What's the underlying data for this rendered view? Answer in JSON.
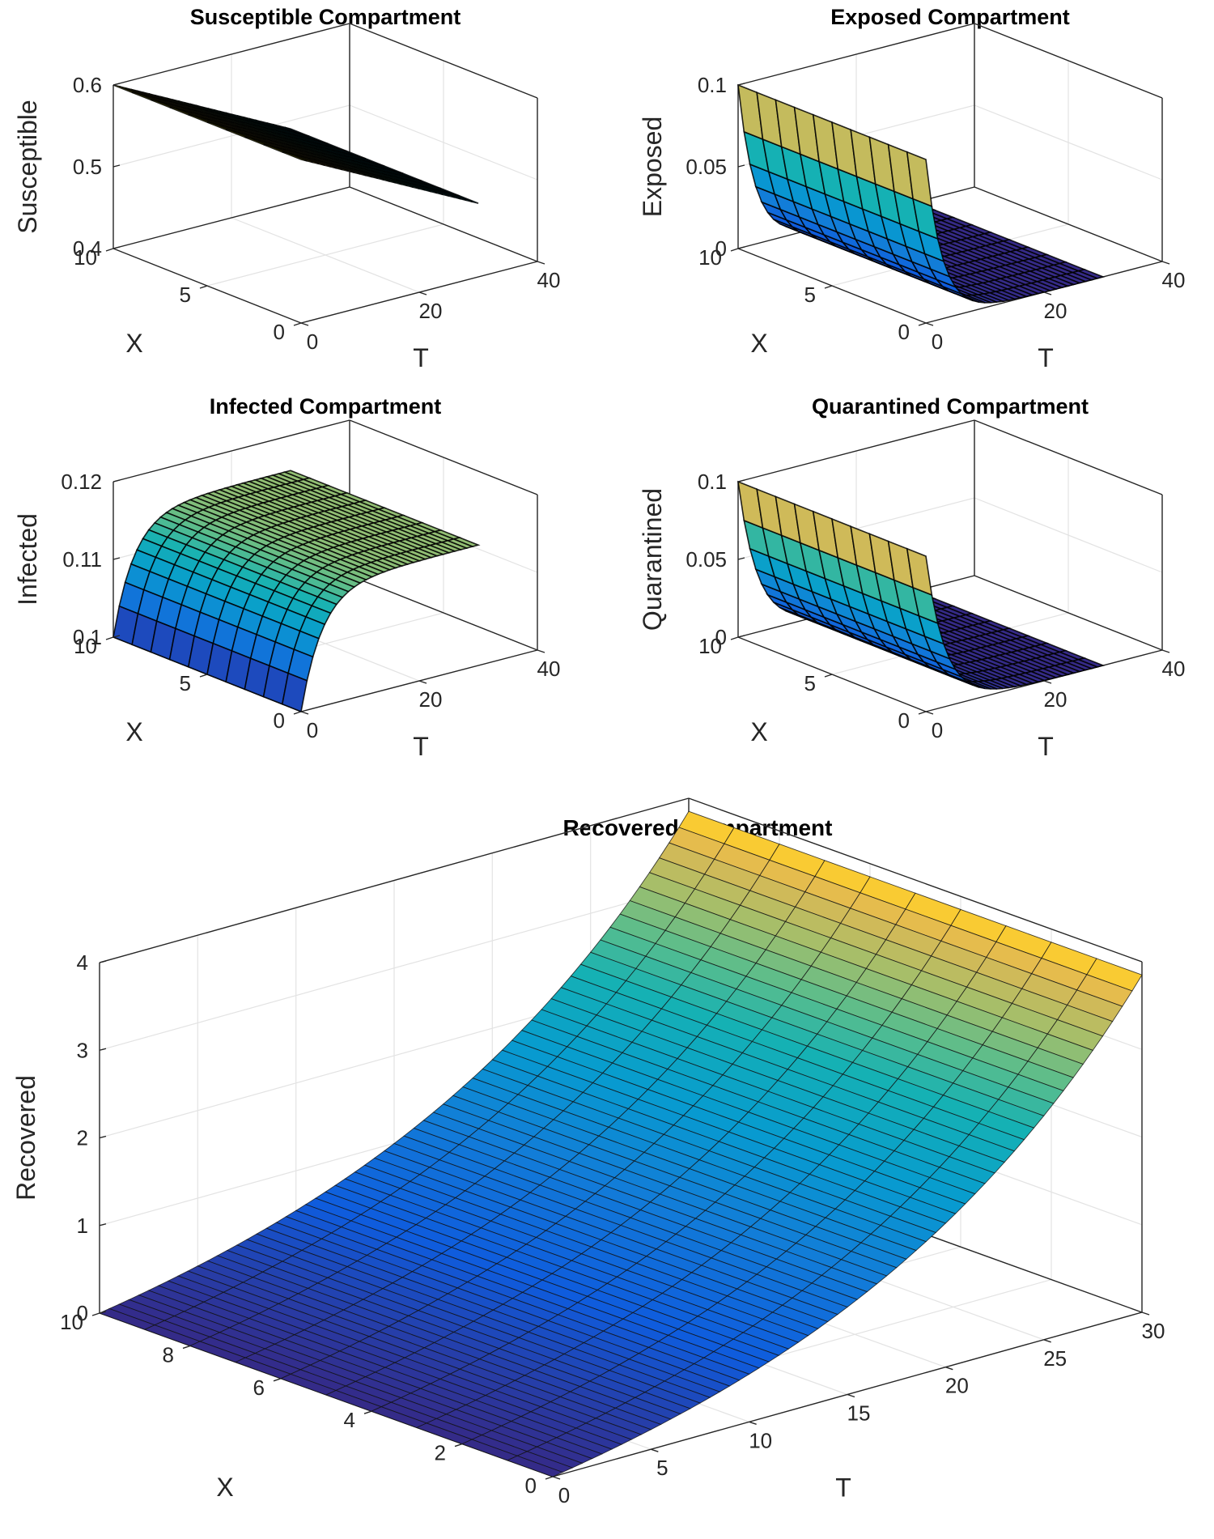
{
  "figure": {
    "background": "#ffffff"
  },
  "chart_data": [
    {
      "id": "susceptible",
      "type": "surface3d",
      "title": "Susceptible Compartment",
      "xlabel": "X",
      "ylabel": "T",
      "zlabel": "Susceptible",
      "x_range": [
        0,
        10
      ],
      "t_range": [
        0,
        40
      ],
      "zlim": [
        0.4,
        0.6
      ],
      "x_ticks": [
        0,
        5,
        10
      ],
      "t_ticks": [
        0,
        20,
        40
      ],
      "z_ticks": [
        0.4,
        0.5,
        0.6
      ],
      "z_tick_labels": [
        "0.4",
        "0.5",
        "0.6"
      ],
      "t_end": 30,
      "model": {
        "kind": "linear",
        "z0": 0.6,
        "z1": 0.49
      },
      "dense_mesh": true
    },
    {
      "id": "exposed",
      "type": "surface3d",
      "title": "Exposed Compartment",
      "xlabel": "X",
      "ylabel": "T",
      "zlabel": "Exposed",
      "x_range": [
        0,
        10
      ],
      "t_range": [
        0,
        40
      ],
      "zlim": [
        0,
        0.1
      ],
      "x_ticks": [
        0,
        5,
        10
      ],
      "t_ticks": [
        0,
        20,
        40
      ],
      "z_ticks": [
        0,
        0.05,
        0.1
      ],
      "z_tick_labels": [
        "0",
        "0.05",
        "0.1"
      ],
      "t_end": 30,
      "model": {
        "kind": "decay",
        "z0": 0.1,
        "zinf": 0.0,
        "k": 0.35
      },
      "dense_mesh": true
    },
    {
      "id": "infected",
      "type": "surface3d",
      "title": "Infected Compartment",
      "xlabel": "X",
      "ylabel": "T",
      "zlabel": "Infected",
      "x_range": [
        0,
        10
      ],
      "t_range": [
        0,
        40
      ],
      "zlim": [
        0.1,
        0.12
      ],
      "x_ticks": [
        0,
        5,
        10
      ],
      "t_ticks": [
        0,
        20,
        40
      ],
      "z_ticks": [
        0.1,
        0.11,
        0.12
      ],
      "z_tick_labels": [
        "0.1",
        "0.11",
        "0.12"
      ],
      "t_end": 30,
      "model": {
        "kind": "rise",
        "z0": 0.1,
        "zinf": 0.1155,
        "k": 0.28
      },
      "dense_mesh": true
    },
    {
      "id": "quarantined",
      "type": "surface3d",
      "title": "Quarantined Compartment",
      "xlabel": "X",
      "ylabel": "T",
      "zlabel": "Quarantined",
      "x_range": [
        0,
        10
      ],
      "t_range": [
        0,
        40
      ],
      "zlim": [
        0,
        0.1
      ],
      "x_ticks": [
        0,
        5,
        10
      ],
      "t_ticks": [
        0,
        20,
        40
      ],
      "z_ticks": [
        0,
        0.05,
        0.1
      ],
      "z_tick_labels": [
        "0",
        "0.05",
        "0.1"
      ],
      "t_end": 30,
      "model": {
        "kind": "decay",
        "z0": 0.1,
        "zinf": 0.0,
        "k": 0.3
      },
      "dense_mesh": true
    },
    {
      "id": "recovered",
      "type": "surface3d",
      "title": "Recovered Compartment",
      "xlabel": "X",
      "ylabel": "T",
      "zlabel": "Recovered",
      "x_range": [
        0,
        10
      ],
      "t_range": [
        0,
        30
      ],
      "zlim": [
        0,
        4
      ],
      "x_ticks": [
        0,
        2,
        4,
        6,
        8,
        10
      ],
      "t_ticks": [
        0,
        5,
        10,
        15,
        20,
        25,
        30
      ],
      "z_ticks": [
        0,
        1,
        2,
        3,
        4
      ],
      "z_tick_labels": [
        "0",
        "1",
        "2",
        "3",
        "4"
      ],
      "t_end": 30,
      "model": {
        "kind": "exp",
        "z0": 0.0,
        "z30": 3.85,
        "k": 0.07
      },
      "dense_mesh": false
    }
  ]
}
